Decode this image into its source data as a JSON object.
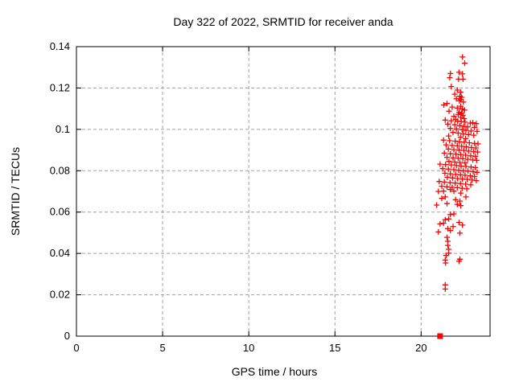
{
  "figure": {
    "title": "Day 322 of 2022, SRMTID for receiver anda",
    "xlabel": "GPS time / hours",
    "ylabel": "SRMTID / TECUs"
  },
  "colors": {
    "marker": "#ff0000",
    "grid": "#a0a0a0",
    "border": "#000000",
    "background": "#ffffff"
  },
  "chart_data": {
    "type": "scatter",
    "title": "Day 322 of 2022, SRMTID for receiver anda",
    "xlabel": "GPS time / hours",
    "ylabel": "SRMTID / TECUs",
    "xlim": [
      0,
      24
    ],
    "ylim": [
      0,
      0.14
    ],
    "grid": true,
    "legend": false,
    "xticks": [
      {
        "v": 0,
        "label": "0"
      },
      {
        "v": 5,
        "label": "5"
      },
      {
        "v": 10,
        "label": "10"
      },
      {
        "v": 15,
        "label": "15"
      },
      {
        "v": 20,
        "label": "20"
      }
    ],
    "yticks": [
      {
        "v": 0,
        "label": "0"
      },
      {
        "v": 0.02,
        "label": "0.02"
      },
      {
        "v": 0.04,
        "label": "0.04"
      },
      {
        "v": 0.06,
        "label": "0.06"
      },
      {
        "v": 0.08,
        "label": "0.08"
      },
      {
        "v": 0.1,
        "label": "0.1"
      },
      {
        "v": 0.12,
        "label": "0.12"
      },
      {
        "v": 0.14,
        "label": "0.14"
      }
    ],
    "series": [
      {
        "name": "srmtid-points",
        "marker": "plus",
        "color": "#ff0000",
        "points": [
          [
            22.4,
            0.135
          ],
          [
            22.53,
            0.132
          ],
          [
            22.2,
            0.1276
          ],
          [
            21.7,
            0.127
          ],
          [
            22.4,
            0.1268
          ],
          [
            21.66,
            0.125
          ],
          [
            22.17,
            0.1243
          ],
          [
            22.43,
            0.1243
          ],
          [
            21.75,
            0.1207
          ],
          [
            22.1,
            0.119
          ],
          [
            22.3,
            0.118
          ],
          [
            21.95,
            0.117
          ],
          [
            22.25,
            0.116
          ],
          [
            22.35,
            0.1155
          ],
          [
            22.05,
            0.1148
          ],
          [
            22.3,
            0.1145
          ],
          [
            22.22,
            0.1138
          ],
          [
            22.45,
            0.1132
          ],
          [
            21.5,
            0.1125
          ],
          [
            21.32,
            0.1118
          ],
          [
            22.3,
            0.1112
          ],
          [
            21.8,
            0.1108
          ],
          [
            22.1,
            0.1103
          ],
          [
            22.4,
            0.1098
          ],
          [
            22.52,
            0.1093
          ],
          [
            21.62,
            0.1088
          ],
          [
            22.2,
            0.1083
          ],
          [
            22.35,
            0.1078
          ],
          [
            22.15,
            0.1073
          ],
          [
            22.42,
            0.1068
          ],
          [
            21.9,
            0.1063
          ],
          [
            22.3,
            0.1058
          ],
          [
            22.5,
            0.1052
          ],
          [
            22.0,
            0.1048
          ],
          [
            21.4,
            0.1045
          ],
          [
            21.75,
            0.1042
          ],
          [
            22.12,
            0.104
          ],
          [
            22.33,
            0.1038
          ],
          [
            22.55,
            0.1035
          ],
          [
            23.0,
            0.1032
          ],
          [
            22.85,
            0.103
          ],
          [
            23.2,
            0.1028
          ],
          [
            21.55,
            0.1025
          ],
          [
            21.95,
            0.1022
          ],
          [
            22.25,
            0.1018
          ],
          [
            22.48,
            0.1015
          ],
          [
            22.7,
            0.1012
          ],
          [
            23.1,
            0.101
          ],
          [
            21.7,
            0.1005
          ],
          [
            22.05,
            0.1002
          ],
          [
            22.38,
            0.0998
          ],
          [
            22.6,
            0.0995
          ],
          [
            22.9,
            0.0992
          ],
          [
            23.25,
            0.099
          ],
          [
            21.85,
            0.0985
          ],
          [
            22.15,
            0.0982
          ],
          [
            22.45,
            0.0978
          ],
          [
            22.75,
            0.0975
          ],
          [
            23.05,
            0.0972
          ],
          [
            21.6,
            0.0968
          ],
          [
            22.28,
            0.0962
          ],
          [
            22.58,
            0.0955
          ],
          [
            21.3,
            0.0948
          ],
          [
            21.65,
            0.0945
          ],
          [
            21.98,
            0.0943
          ],
          [
            22.22,
            0.094
          ],
          [
            22.5,
            0.0938
          ],
          [
            22.8,
            0.0935
          ],
          [
            23.1,
            0.0932
          ],
          [
            23.3,
            0.093
          ],
          [
            21.45,
            0.0925
          ],
          [
            21.8,
            0.0922
          ],
          [
            22.1,
            0.092
          ],
          [
            22.35,
            0.0918
          ],
          [
            22.62,
            0.0915
          ],
          [
            22.92,
            0.0912
          ],
          [
            23.18,
            0.091
          ],
          [
            21.58,
            0.0905
          ],
          [
            21.9,
            0.0902
          ],
          [
            22.2,
            0.09
          ],
          [
            22.48,
            0.0898
          ],
          [
            22.75,
            0.0895
          ],
          [
            23.05,
            0.0892
          ],
          [
            23.28,
            0.089
          ],
          [
            21.35,
            0.0885
          ],
          [
            21.7,
            0.0882
          ],
          [
            22.02,
            0.088
          ],
          [
            22.3,
            0.0878
          ],
          [
            22.58,
            0.0875
          ],
          [
            22.88,
            0.0872
          ],
          [
            23.15,
            0.087
          ],
          [
            21.5,
            0.0865
          ],
          [
            21.85,
            0.0862
          ],
          [
            22.15,
            0.086
          ],
          [
            22.42,
            0.0858
          ],
          [
            22.7,
            0.0855
          ],
          [
            23.0,
            0.0852
          ],
          [
            23.22,
            0.085
          ],
          [
            21.62,
            0.0845
          ],
          [
            21.95,
            0.0842
          ],
          [
            22.25,
            0.084
          ],
          [
            22.55,
            0.0838
          ],
          [
            21.1,
            0.0832
          ],
          [
            21.42,
            0.083
          ],
          [
            21.75,
            0.0828
          ],
          [
            22.05,
            0.0825
          ],
          [
            22.32,
            0.0822
          ],
          [
            22.6,
            0.082
          ],
          [
            22.9,
            0.0818
          ],
          [
            23.15,
            0.0815
          ],
          [
            21.25,
            0.081
          ],
          [
            21.58,
            0.0808
          ],
          [
            21.9,
            0.0805
          ],
          [
            22.18,
            0.0802
          ],
          [
            22.45,
            0.08
          ],
          [
            22.72,
            0.0798
          ],
          [
            23.02,
            0.0795
          ],
          [
            23.25,
            0.0792
          ],
          [
            21.38,
            0.0788
          ],
          [
            21.7,
            0.0785
          ],
          [
            22.0,
            0.0782
          ],
          [
            22.28,
            0.078
          ],
          [
            22.55,
            0.0778
          ],
          [
            22.85,
            0.0775
          ],
          [
            23.1,
            0.0772
          ],
          [
            21.52,
            0.0768
          ],
          [
            21.82,
            0.0765
          ],
          [
            22.12,
            0.0762
          ],
          [
            22.4,
            0.076
          ],
          [
            22.68,
            0.0758
          ],
          [
            22.95,
            0.0755
          ],
          [
            23.2,
            0.0752
          ],
          [
            21.05,
            0.0748
          ],
          [
            21.35,
            0.0745
          ],
          [
            21.68,
            0.0742
          ],
          [
            21.98,
            0.074
          ],
          [
            22.28,
            0.0738
          ],
          [
            22.58,
            0.0735
          ],
          [
            22.88,
            0.0732
          ],
          [
            21.2,
            0.0725
          ],
          [
            21.5,
            0.0722
          ],
          [
            21.8,
            0.072
          ],
          [
            22.1,
            0.0718
          ],
          [
            22.38,
            0.0715
          ],
          [
            22.65,
            0.0712
          ],
          [
            21.0,
            0.07
          ],
          [
            21.3,
            0.0701
          ],
          [
            21.7,
            0.0709
          ],
          [
            21.9,
            0.0701
          ],
          [
            22.3,
            0.0692
          ],
          [
            22.6,
            0.0673
          ],
          [
            21.2,
            0.0666
          ],
          [
            21.4,
            0.0673
          ],
          [
            22.0,
            0.066
          ],
          [
            22.25,
            0.0653
          ],
          [
            20.9,
            0.0634
          ],
          [
            21.5,
            0.0641
          ],
          [
            22.1,
            0.0637
          ],
          [
            22.3,
            0.0631
          ],
          [
            21.7,
            0.0588
          ],
          [
            21.9,
            0.0591
          ],
          [
            21.4,
            0.0563
          ],
          [
            21.6,
            0.0567
          ],
          [
            21.1,
            0.0543
          ],
          [
            21.3,
            0.0546
          ],
          [
            22.2,
            0.055
          ],
          [
            22.4,
            0.0537
          ],
          [
            21.0,
            0.0504
          ],
          [
            21.7,
            0.0511
          ],
          [
            22.25,
            0.0498
          ],
          [
            21.55,
            0.052
          ],
          [
            21.85,
            0.053
          ],
          [
            21.5,
            0.0478
          ],
          [
            21.55,
            0.0459
          ],
          [
            21.55,
            0.0439
          ],
          [
            21.6,
            0.042
          ],
          [
            21.6,
            0.0401
          ],
          [
            21.45,
            0.039
          ],
          [
            21.4,
            0.0368
          ],
          [
            22.25,
            0.0372
          ],
          [
            21.42,
            0.0354
          ],
          [
            22.2,
            0.0362
          ],
          [
            21.4,
            0.0248
          ],
          [
            21.4,
            0.0228
          ]
        ]
      },
      {
        "name": "zero-flag-point",
        "marker": "filled-square",
        "color": "#ff0000",
        "points": [
          [
            21.1,
            0.0
          ]
        ]
      }
    ]
  }
}
